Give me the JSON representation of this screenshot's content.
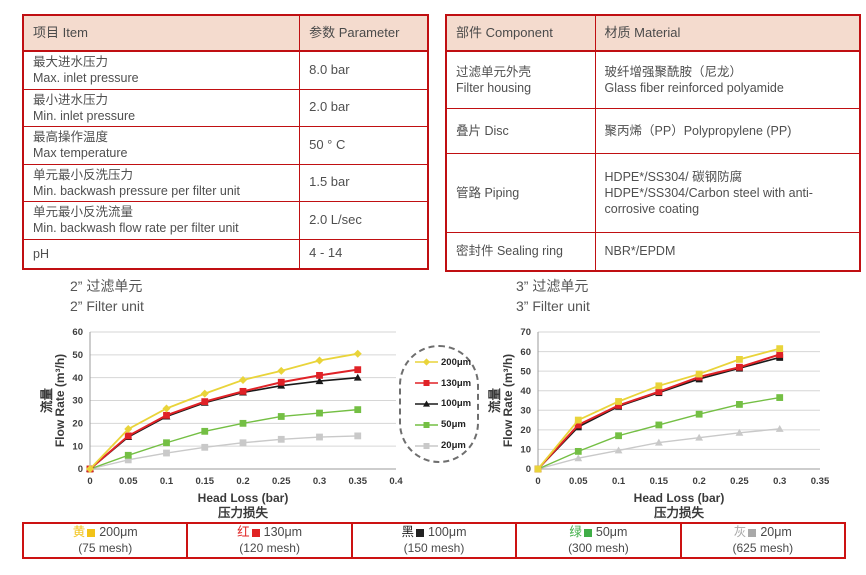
{
  "colors": {
    "table_border_red": "#c00f12",
    "header_bg_pink": "#f4dbce",
    "series_yellow": "#e9d43a",
    "series_red": "#e02227",
    "series_black": "#1a1a1a",
    "series_green": "#74bf44",
    "series_gray": "#c9c9c9"
  },
  "spec_table": {
    "headers": [
      "项目 Item",
      "参数 Parameter"
    ],
    "rows": [
      {
        "item_zh": "最大进水压力",
        "item_en": "Max. inlet pressure",
        "value": "8.0 bar"
      },
      {
        "item_zh": "最小进水压力",
        "item_en": "Min. inlet pressure",
        "value": "2.0 bar"
      },
      {
        "item_zh": "最高操作温度",
        "item_en": "Max temperature",
        "value": "50 ° C"
      },
      {
        "item_zh": "单元最小反洗压力",
        "item_en": "Min. backwash pressure per filter unit",
        "value": "1.5 bar"
      },
      {
        "item_zh": "单元最小反洗流量",
        "item_en": "Min. backwash flow rate per filter unit",
        "value": "2.0 L/sec"
      },
      {
        "item_zh": "pH",
        "item_en": "",
        "value": "4 - 14"
      }
    ]
  },
  "material_table": {
    "headers": [
      "部件 Component",
      "材质 Material"
    ],
    "rows": [
      {
        "component_zh": "过滤单元外壳",
        "component_en": "Filter housing",
        "material_zh": "玻纤增强聚酰胺（尼龙）",
        "material_en": "Glass fiber reinforced polyamide"
      },
      {
        "component_zh": "叠片 Disc",
        "component_en": "",
        "material_zh": "聚丙烯（PP）Polypropylene (PP)",
        "material_en": ""
      },
      {
        "component_zh": "管路 Piping",
        "component_en": "",
        "material_zh": "HDPE*/SS304/ 碳钢防腐",
        "material_en": "HDPE*/SS304/Carbon steel with anti-corrosive coating"
      },
      {
        "component_zh": "密封件 Sealing ring",
        "component_en": "",
        "material_zh": "NBR*/EPDM",
        "material_en": ""
      }
    ]
  },
  "chart_data": [
    {
      "type": "line",
      "title_zh": "2” 过滤单元",
      "title_en": "2” Filter unit",
      "xlabel": "Head Loss (bar)",
      "xlabel_zh": "压力损失",
      "ylabel_zh": "流量",
      "ylabel": "Flow Rate (m³/h)",
      "xlim": [
        0,
        0.4
      ],
      "ylim": [
        0,
        60
      ],
      "xticks": [
        "0",
        "0.05",
        "0.1",
        "0.15",
        "0.2",
        "0.25",
        "0.3",
        "0.35",
        "0.4"
      ],
      "yticks": [
        0,
        10,
        20,
        30,
        40,
        50,
        60
      ],
      "grid": "horizontal",
      "x": [
        0,
        0.05,
        0.1,
        0.15,
        0.2,
        0.25,
        0.3,
        0.35
      ],
      "series": [
        {
          "name": "200μm",
          "color": "#e9d43a",
          "marker": "diamond",
          "values": [
            0,
            17.5,
            26.5,
            33,
            39,
            43,
            47.5,
            50.5
          ]
        },
        {
          "name": "130μm",
          "color": "#e02227",
          "marker": "square",
          "values": [
            0,
            14.5,
            23.5,
            29.5,
            34,
            38,
            41,
            43.5
          ]
        },
        {
          "name": "100μm",
          "color": "#1a1a1a",
          "marker": "triangle",
          "values": [
            0,
            14,
            23,
            29,
            33.5,
            36.5,
            38.5,
            40
          ]
        },
        {
          "name": "50μm",
          "color": "#74bf44",
          "marker": "square",
          "values": [
            0,
            6,
            11.5,
            16.5,
            20,
            23,
            24.5,
            26
          ]
        },
        {
          "name": "20μm",
          "color": "#c9c9c9",
          "marker": "square",
          "values": [
            0,
            4,
            7,
            9.5,
            11.5,
            13,
            14,
            14.5
          ]
        }
      ]
    },
    {
      "type": "line",
      "title_zh": "3” 过滤单元",
      "title_en": "3” Filter unit",
      "xlabel": "Head Loss (bar)",
      "xlabel_zh": "压力损失",
      "ylabel_zh": "流量",
      "ylabel": "Flow Rate (m³/h)",
      "xlim": [
        0,
        0.35
      ],
      "ylim": [
        0,
        70
      ],
      "xticks": [
        "0",
        "0.05",
        "0.1",
        "0.15",
        "0.2",
        "0.25",
        "0.3",
        "0.35"
      ],
      "yticks": [
        0,
        10,
        20,
        30,
        40,
        50,
        60,
        70
      ],
      "grid": "horizontal",
      "x": [
        0,
        0.05,
        0.1,
        0.15,
        0.2,
        0.25,
        0.3
      ],
      "series": [
        {
          "name": "200μm",
          "color": "#e9d43a",
          "marker": "square",
          "values": [
            0,
            25,
            34.5,
            42.5,
            48.5,
            56,
            61.5
          ]
        },
        {
          "name": "130μm",
          "color": "#e02227",
          "marker": "square",
          "values": [
            0,
            22.5,
            32.5,
            39.5,
            47,
            52,
            58.5
          ]
        },
        {
          "name": "100μm",
          "color": "#1a1a1a",
          "marker": "square",
          "values": [
            0,
            21.5,
            32,
            39,
            46,
            51.5,
            57
          ]
        },
        {
          "name": "50μm",
          "color": "#74bf44",
          "marker": "square",
          "values": [
            0,
            9,
            17,
            22.5,
            28,
            33,
            36.5
          ]
        },
        {
          "name": "20μm",
          "color": "#c9c9c9",
          "marker": "triangle",
          "values": [
            0,
            5.5,
            9.5,
            13.5,
            16,
            18.5,
            20.5
          ]
        }
      ]
    }
  ],
  "legend": {
    "items": [
      {
        "label": "200μm",
        "color": "#e9d43a",
        "marker": "diamond"
      },
      {
        "label": "130μm",
        "color": "#e02227",
        "marker": "square"
      },
      {
        "label": "100μm",
        "color": "#1a1a1a",
        "marker": "triangle"
      },
      {
        "label": "50μm",
        "color": "#74bf44",
        "marker": "square"
      },
      {
        "label": "20μm",
        "color": "#c9c9c9",
        "marker": "square"
      }
    ]
  },
  "mesh_table": {
    "cells": [
      {
        "color_name": "黄",
        "color": "#f2c318",
        "size": "200μm",
        "mesh": "(75 mesh)"
      },
      {
        "color_name": "红",
        "color": "#e02424",
        "size": "130μm",
        "mesh": "(120 mesh)"
      },
      {
        "color_name": "黑",
        "color": "#222222",
        "size": "100μm",
        "mesh": "(150 mesh)"
      },
      {
        "color_name": "绿",
        "color": "#3fae47",
        "size": "50μm",
        "mesh": "(300 mesh)"
      },
      {
        "color_name": "灰",
        "color": "#a9a9a9",
        "size": "20μm",
        "mesh": "(625 mesh)"
      }
    ]
  }
}
